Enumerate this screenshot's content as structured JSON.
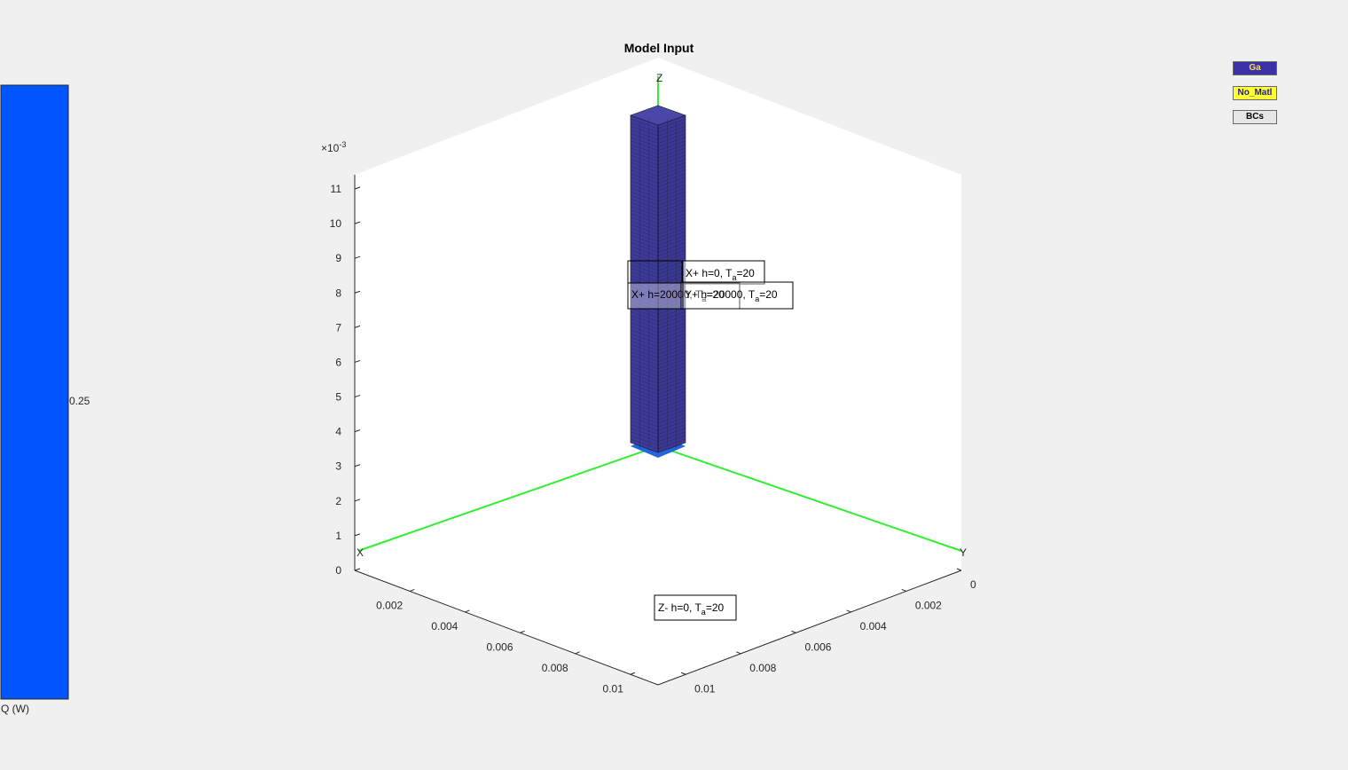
{
  "colors": {
    "background": "#f0f0f0",
    "colorbar": "#0055ff",
    "block": "#3d3a9a",
    "axes_lines": "#33ee33",
    "base": "#2266dd"
  },
  "buttons": [
    {
      "label": "Ga",
      "color": "#3c2fa8",
      "text_color": "#f0e24a"
    },
    {
      "label": "No_Matl",
      "color": "#ffff33",
      "text_color": "#1a1aa8"
    },
    {
      "label": "BCs",
      "color": "#e6e6e6",
      "text_color": "#000000"
    }
  ],
  "colorbar": {
    "tick_label": "0.25",
    "label": "Q (W)",
    "value": 0.25
  },
  "chart_data": {
    "type": "3d-patch",
    "title": "Model Input",
    "axis_labels": {
      "x": "X",
      "y": "Y",
      "z": "Z"
    },
    "z_exponent": "×10",
    "z_exponent_power": "-3",
    "x_ticks": [
      "0.002",
      "0.004",
      "0.006",
      "0.008",
      "0.01"
    ],
    "y_ticks": [
      "0",
      "0.002",
      "0.004",
      "0.006",
      "0.008",
      "0.01"
    ],
    "z_ticks": [
      "0",
      "1",
      "2",
      "3",
      "4",
      "5",
      "6",
      "7",
      "8",
      "9",
      "10",
      "11"
    ],
    "xlim": [
      0,
      0.011
    ],
    "ylim": [
      0,
      0.011
    ],
    "zlim": [
      0,
      0.0115
    ],
    "block": {
      "x": [
        0,
        0.0005
      ],
      "y": [
        0,
        0.0005
      ],
      "z": [
        0.0035,
        0.0115
      ],
      "color": "#3d3a9a",
      "edge_color": "#1a1a1a"
    },
    "annotations": [
      {
        "label": "X+ h=0, T",
        "sub": "a",
        "tail": "=20",
        "text": "X+ h=0, T_a=20"
      },
      {
        "label": "X+ h=20000, T",
        "sub": "a",
        "tail": "=20",
        "text": "X+ h=20000, T_a=20"
      },
      {
        "label": "Y+ h=20000, T",
        "sub": "a",
        "tail": "=20",
        "text": "Y+ h=20000, T_a=20"
      },
      {
        "label": "Z- h=0, T",
        "sub": "a",
        "tail": "=20",
        "text": "Z- h=0, T_a=20"
      }
    ]
  }
}
